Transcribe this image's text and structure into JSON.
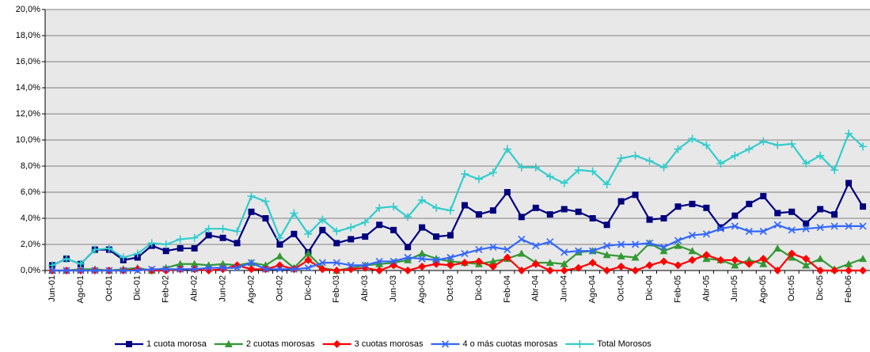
{
  "chart_data": {
    "type": "line",
    "categories": [
      "Jun-01",
      null,
      "Ago-01",
      null,
      "Oct-01",
      null,
      "Dic-01",
      null,
      "Feb-02",
      null,
      "Abr-02",
      null,
      "Jun-02",
      null,
      "Ago-02",
      null,
      "Oct-02",
      null,
      "Dic-02",
      null,
      "Feb-03",
      null,
      "Abr-03",
      null,
      "Jun-03",
      null,
      "Ago-03",
      null,
      "Oct-03",
      null,
      "Dic-03",
      null,
      "Feb-04",
      null,
      "Abr-04",
      null,
      "Jun-04",
      null,
      "Ago-04",
      null,
      "Oct-04",
      null,
      "Dic-04",
      null,
      "Feb-05",
      null,
      "Abr-05",
      null,
      "Jun-05",
      null,
      "Ago-05",
      null,
      "Oct-05",
      null,
      "Dic-05",
      null,
      "Feb-06",
      null
    ],
    "series": [
      {
        "name": "1 cuota morosa",
        "color": "#000080",
        "marker": "square",
        "values": [
          0.4,
          0.9,
          0.5,
          1.6,
          1.6,
          0.8,
          1.0,
          1.9,
          1.5,
          1.7,
          1.7,
          2.7,
          2.5,
          2.1,
          4.5,
          4.0,
          2.0,
          2.8,
          1.4,
          3.1,
          2.1,
          2.4,
          2.6,
          3.5,
          3.1,
          1.8,
          3.3,
          2.6,
          2.7,
          5.0,
          4.3,
          4.6,
          6.0,
          4.1,
          4.8,
          4.3,
          4.7,
          4.5,
          4.0,
          3.5,
          5.3,
          5.8,
          3.9,
          4.0,
          4.9,
          5.1,
          4.8,
          3.3,
          4.2,
          5.1,
          5.7,
          4.4,
          4.5,
          3.6,
          4.7,
          4.3,
          6.7,
          4.9
        ]
      },
      {
        "name": "2 cuotas morosas",
        "color": "#339933",
        "marker": "triangle",
        "values": [
          0,
          0,
          0.1,
          0.1,
          0,
          0.1,
          0.2,
          0,
          0.2,
          0.5,
          0.5,
          0.4,
          0.5,
          0.4,
          0.6,
          0.4,
          1.1,
          0.2,
          1.3,
          0.2,
          0,
          0.2,
          0.4,
          0.5,
          0.6,
          0.8,
          1.3,
          0.9,
          0.7,
          0.6,
          0.5,
          0.7,
          0.9,
          1.3,
          0.6,
          0.6,
          0.5,
          1.4,
          1.5,
          1.2,
          1.1,
          1.0,
          2.1,
          1.5,
          1.9,
          1.5,
          0.9,
          0.8,
          0.4,
          0.8,
          0.5,
          1.7,
          1.0,
          0.4,
          0.9,
          0.1,
          0.5,
          0.9
        ]
      },
      {
        "name": "3 cuotas morosas",
        "color": "#ff0000",
        "marker": "diamond",
        "values": [
          0,
          0,
          0,
          0,
          0,
          0,
          0.1,
          0,
          0,
          0.1,
          0.1,
          0,
          0.1,
          0.4,
          0.1,
          0.1,
          0.4,
          0.1,
          0.8,
          0.1,
          0,
          0.1,
          0.2,
          0,
          0.4,
          0,
          0.3,
          0.5,
          0.4,
          0.6,
          0.7,
          0.3,
          1.0,
          0,
          0.5,
          0,
          0,
          0.2,
          0.6,
          0,
          0.3,
          0,
          0.4,
          0.7,
          0.4,
          0.8,
          1.2,
          0.8,
          0.8,
          0.5,
          0.9,
          0,
          1.3,
          0.9,
          0,
          0,
          0,
          0
        ]
      },
      {
        "name": "4 o más cuotas morosas",
        "color": "#3366ff",
        "marker": "x",
        "values": [
          0,
          0,
          0,
          0,
          0,
          0,
          0,
          0.1,
          0.1,
          0.1,
          0.1,
          0.2,
          0.2,
          0.2,
          0.6,
          0.1,
          0.1,
          0.1,
          0.2,
          0.6,
          0.6,
          0.4,
          0.4,
          0.7,
          0.7,
          1.0,
          0.9,
          0.8,
          1.0,
          1.3,
          1.6,
          1.8,
          1.6,
          2.4,
          1.9,
          2.2,
          1.4,
          1.5,
          1.5,
          1.9,
          2.0,
          2.0,
          2.1,
          1.8,
          2.3,
          2.7,
          2.8,
          3.2,
          3.4,
          3.0,
          3.0,
          3.5,
          3.1,
          3.2,
          3.3,
          3.4,
          3.4,
          3.4
        ]
      },
      {
        "name": "Total Morosos",
        "color": "#33cccc",
        "marker": "plus",
        "values": [
          0.4,
          0.9,
          0.5,
          1.6,
          1.7,
          1.0,
          1.3,
          2.1,
          2.0,
          2.4,
          2.5,
          3.2,
          3.2,
          3.0,
          5.7,
          5.3,
          2.5,
          4.4,
          2.8,
          3.9,
          3.0,
          3.3,
          3.7,
          4.8,
          4.9,
          4.1,
          5.4,
          4.8,
          4.6,
          7.4,
          7.0,
          7.5,
          9.3,
          7.9,
          7.9,
          7.2,
          6.7,
          7.7,
          7.6,
          6.6,
          8.6,
          8.8,
          8.4,
          7.9,
          9.3,
          10.1,
          9.6,
          8.2,
          8.8,
          9.3,
          9.9,
          9.6,
          9.7,
          8.2,
          8.8,
          7.7,
          10.5,
          9.5
        ]
      }
    ],
    "ylim": [
      0,
      20
    ],
    "yticks": [
      {
        "value": 0,
        "label": "0,0%"
      },
      {
        "value": 2,
        "label": "2,0%"
      },
      {
        "value": 4,
        "label": "4,0%"
      },
      {
        "value": 6,
        "label": "6,0%"
      },
      {
        "value": 8,
        "label": "8,0%"
      },
      {
        "value": 10,
        "label": "10,0%"
      },
      {
        "value": 12,
        "label": "12,0%"
      },
      {
        "value": 14,
        "label": "14,0%"
      },
      {
        "value": 16,
        "label": "16,0%"
      },
      {
        "value": 18,
        "label": "18,0%"
      },
      {
        "value": 20,
        "label": "20,0%"
      }
    ],
    "grid": true,
    "legend": "bottom"
  }
}
